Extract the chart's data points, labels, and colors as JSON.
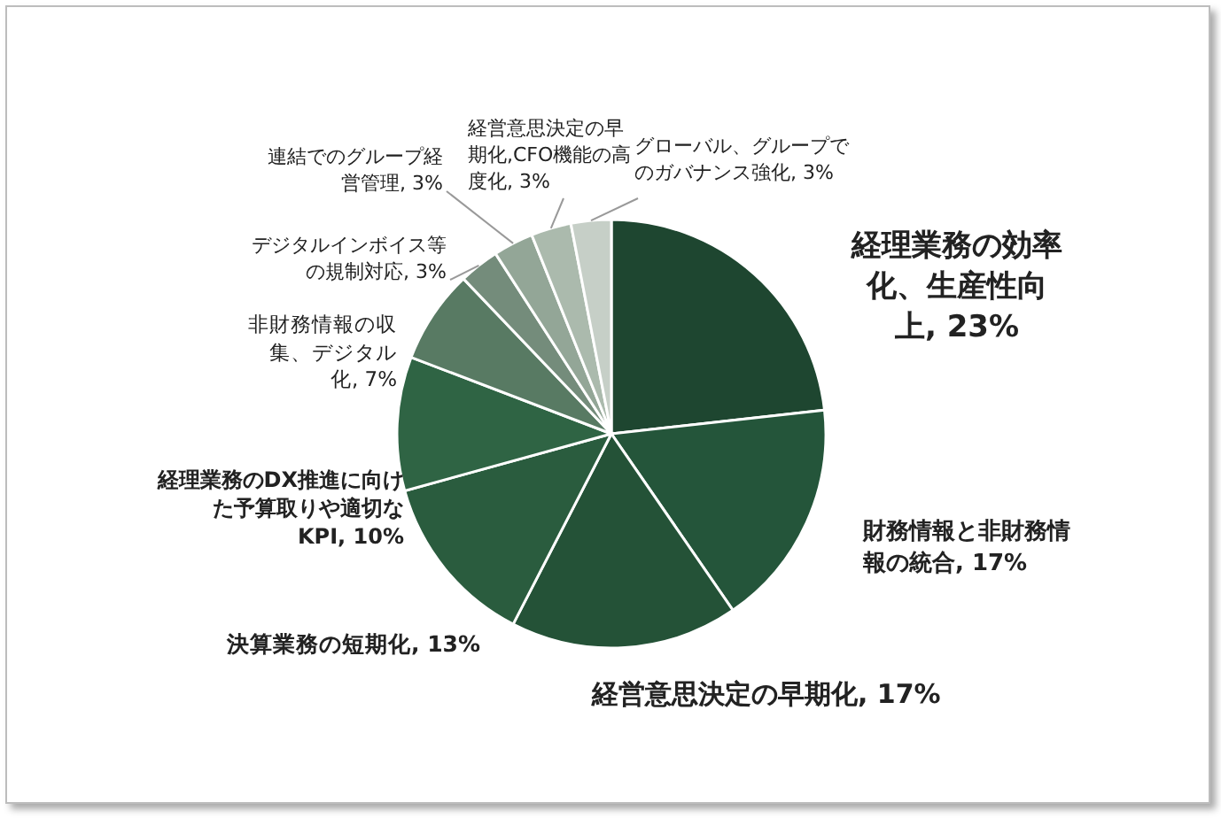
{
  "chart_data": {
    "type": "pie",
    "categories": [
      "経理業務の効率化、生産性向上",
      "財務情報と非財務情報の統合",
      "経営意思決定の早期化",
      "決算業務の短期化",
      "経理業務のDX推進に向けた予算取りや適切なKPI",
      "非財務情報の収集、デジタル化",
      "デジタルインボイス等の規制対応",
      "連結でのグループ経営管理",
      "経営意思決定の早期化,CFO機能の高度化",
      "グローバル、グループでのガバナンス強化"
    ],
    "values": [
      23,
      17,
      17,
      13,
      10,
      7,
      3,
      3,
      3,
      3
    ],
    "value_labels": [
      "23%",
      "17%",
      "17%",
      "13%",
      "10%",
      "7%",
      "3%",
      "3%",
      "3%",
      "3%"
    ],
    "colors": [
      "#1e4630",
      "#24553a",
      "#245237",
      "#2a5c3e",
      "#2f6444",
      "#587a63",
      "#748c7b",
      "#93a697",
      "#abbaad",
      "#c6cfc7"
    ]
  }
}
